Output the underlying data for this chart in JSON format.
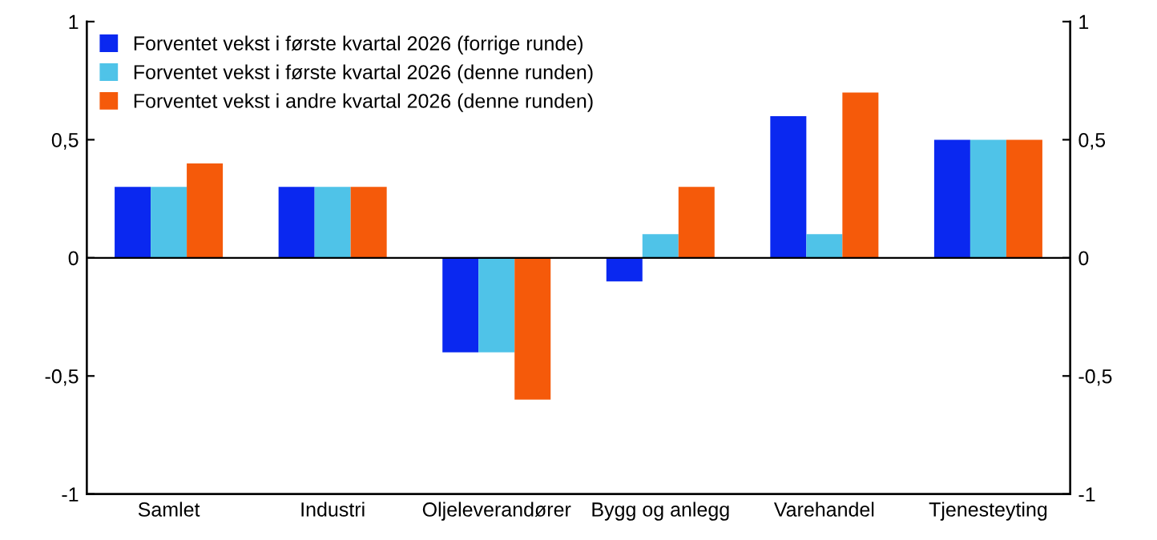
{
  "chart_data": {
    "type": "bar",
    "categories": [
      "Samlet",
      "Industri",
      "Oljeleverandører",
      "Bygg og anlegg",
      "Varehandel",
      "Tjenesteyting"
    ],
    "series": [
      {
        "name": "Forventet vekst i første kvartal 2026 (forrige runde)",
        "color": "#0a28f0",
        "values": [
          0.3,
          0.3,
          -0.4,
          -0.1,
          0.6,
          0.5
        ]
      },
      {
        "name": "Forventet vekst i første kvartal 2026 (denne runden)",
        "color": "#4fc3e8",
        "values": [
          0.3,
          0.3,
          -0.4,
          0.1,
          0.1,
          0.5
        ]
      },
      {
        "name": "Forventet vekst i andre kvartal 2026 (denne runden)",
        "color": "#f55a0a",
        "values": [
          0.4,
          0.3,
          -0.6,
          0.3,
          0.7,
          0.5
        ]
      }
    ],
    "ylim": [
      -1,
      1
    ],
    "yticks": [
      {
        "value": -1,
        "label": "-1"
      },
      {
        "value": -0.5,
        "label": "-0,5"
      },
      0,
      {
        "value": 0.5,
        "label": "0,5"
      },
      1
    ],
    "y2lim": [
      -1,
      1
    ],
    "y2ticks": [
      {
        "value": -1,
        "label": "-1"
      },
      {
        "value": -0.5,
        "label": "-0,5"
      },
      0,
      {
        "value": 0.5,
        "label": "0,5"
      },
      1
    ],
    "ref_lines": [
      {
        "axis": "y",
        "value": 0,
        "color": "#000000"
      }
    ],
    "grid": false,
    "legend": "top left"
  }
}
